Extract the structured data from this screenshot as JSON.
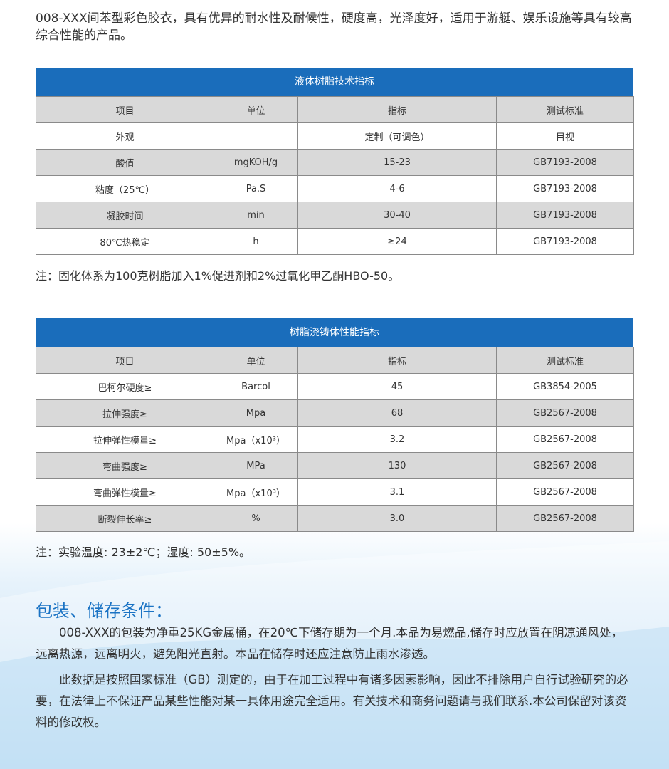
{
  "intro": "008-XXX间苯型彩色胶衣，具有优异的耐水性及耐候性，硬度高，光泽度好，适用于游艇、娱乐设施等具有较高综合性能的产品。",
  "tables": [
    {
      "title": "液体树脂技术指标",
      "headers": [
        "项目",
        "单位",
        "指标",
        "测试标准"
      ],
      "rows": [
        [
          "外观",
          "",
          "定制（可调色）",
          "目视"
        ],
        [
          "酸值",
          "mgKOH/g",
          "15-23",
          "GB7193-2008"
        ],
        [
          "粘度（25℃）",
          "Pa.S",
          "4-6",
          "GB7193-2008"
        ],
        [
          "凝胶时间",
          "min",
          "30-40",
          "GB7193-2008"
        ],
        [
          "80℃热稳定",
          "h",
          "≥24",
          "GB7193-2008"
        ]
      ],
      "note": "注：固化体系为100克树脂加入1%促进剂和2%过氧化甲乙酮HBO-50。"
    },
    {
      "title": "树脂浇铸体性能指标",
      "headers": [
        "项目",
        "单位",
        "指标",
        "测试标准"
      ],
      "rows": [
        [
          "巴柯尔硬度≥",
          "Barcol",
          "45",
          "GB3854-2005"
        ],
        [
          "拉伸强度≥",
          "Mpa",
          "68",
          "GB2567-2008"
        ],
        [
          "拉伸弹性模量≥",
          "Mpa（x10³）",
          "3.2",
          "GB2567-2008"
        ],
        [
          "弯曲强度≥",
          "MPa",
          "130",
          "GB2567-2008"
        ],
        [
          "弯曲弹性模量≥",
          "Mpa（x10³）",
          "3.1",
          "GB2567-2008"
        ],
        [
          "断裂伸长率≥",
          "%",
          "3.0",
          "GB2567-2008"
        ]
      ],
      "note": "注：实验温度: 23±2℃；湿度: 50±5%。"
    }
  ],
  "section": {
    "heading": "包装、储存条件：",
    "paragraphs": [
      "008-XXX的包装为净重25KG金属桶，在20℃下储存期为一个月.本品为易燃品,储存时应放置在阴凉通风处，远离热源，远离明火，避免阳光直射。本品在储存时还应注意防止雨水渗透。",
      "此数据是按照国家标准（GB）测定的，由于在加工过程中有诸多因素影响，因此不排除用户自行试验研究的必要，在法律上不保证产品某些性能对某一具体用途完全适用。有关技术和商务问题请与我们联系.本公司保留对该资料的修改权。"
    ]
  }
}
